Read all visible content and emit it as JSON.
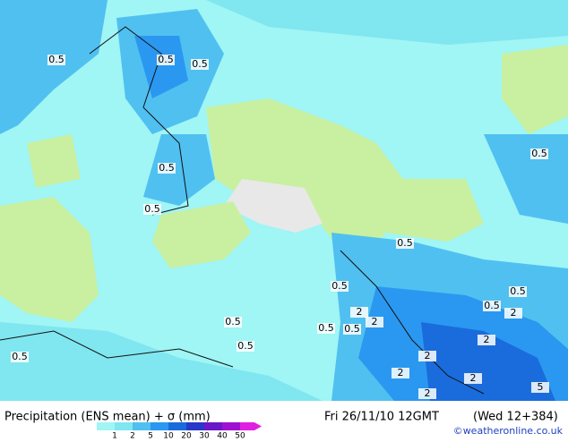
{
  "title": "Precipitation (ENS mean) + σ (mm)",
  "timestamp": "Fri 26/11/10 12GMT",
  "forecast": "(Wed 12+384)",
  "credit": "©weatheronline.co.uk",
  "colorbar": {
    "ticks": [
      1,
      2,
      5,
      10,
      20,
      30,
      40,
      50
    ],
    "colors": [
      "#a0f5f5",
      "#80e6f0",
      "#50c0f0",
      "#2a98f0",
      "#1a6cdc",
      "#2838c8",
      "#6a18c8",
      "#a010d0",
      "#e020e0"
    ]
  },
  "contour_labels": [
    "0.5",
    "0.5",
    "0.5",
    "0.5",
    "0.5",
    "0.5",
    "0.5",
    "0.5",
    "0.5",
    "0.5",
    "0.5",
    "0.5",
    "0.5",
    "2",
    "2",
    "2",
    "0.5",
    "0.5",
    "2",
    "2",
    "2",
    "2",
    "5",
    "2"
  ]
}
